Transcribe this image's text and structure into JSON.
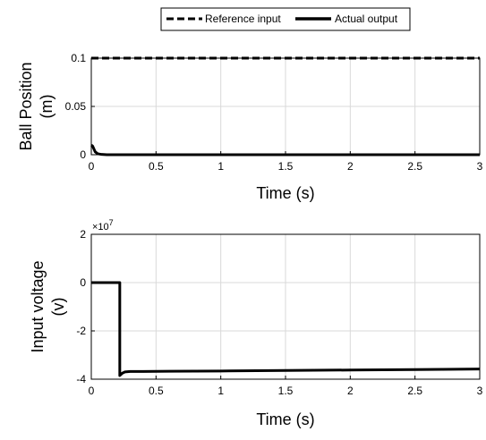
{
  "chart_data": [
    {
      "type": "line",
      "title": "",
      "xlabel": "Time (s)",
      "ylabel_line1": "Ball Position",
      "ylabel_line2": "(m)",
      "xlim": [
        0,
        3
      ],
      "ylim": [
        0,
        0.1
      ],
      "xticks": [
        0,
        0.5,
        1,
        1.5,
        2,
        2.5,
        3
      ],
      "yticks": [
        0,
        0.05,
        0.1
      ],
      "grid": true,
      "legend": {
        "placement": "top",
        "entries": [
          {
            "name": "Reference input",
            "style": "dashed"
          },
          {
            "name": "Actual output",
            "style": "solid"
          }
        ]
      },
      "series": [
        {
          "name": "Reference input",
          "style": "dashed",
          "color": "#000000",
          "x": [
            0,
            3
          ],
          "y": [
            0.1,
            0.1
          ]
        },
        {
          "name": "Actual output",
          "style": "solid",
          "color": "#000000",
          "x": [
            0,
            0.01,
            0.02,
            0.03,
            0.05,
            0.08,
            0.12,
            3
          ],
          "y": [
            0.01,
            0.009,
            0.006,
            0.003,
            0.001,
            0.0003,
            0,
            0
          ]
        }
      ]
    },
    {
      "type": "line",
      "title": "",
      "xlabel": "Time (s)",
      "ylabel_line1": "Input voltage",
      "ylabel_line2": "(v)",
      "exponent_base": "×10",
      "exponent_power": "7",
      "xlim": [
        0,
        3
      ],
      "ylim": [
        -4,
        2
      ],
      "xticks": [
        0,
        0.5,
        1,
        1.5,
        2,
        2.5,
        3
      ],
      "yticks": [
        -4,
        -2,
        0,
        2
      ],
      "grid": true,
      "series": [
        {
          "name": "Actual output",
          "style": "solid",
          "color": "#000000",
          "x": [
            0,
            0.22,
            0.22,
            0.24,
            0.26,
            0.3,
            0.4,
            0.6,
            1.0,
            1.5,
            2.0,
            2.5,
            3.0
          ],
          "y": [
            0,
            0,
            -3.85,
            -3.75,
            -3.7,
            -3.68,
            -3.68,
            -3.67,
            -3.66,
            -3.64,
            -3.62,
            -3.6,
            -3.58
          ]
        }
      ]
    }
  ]
}
